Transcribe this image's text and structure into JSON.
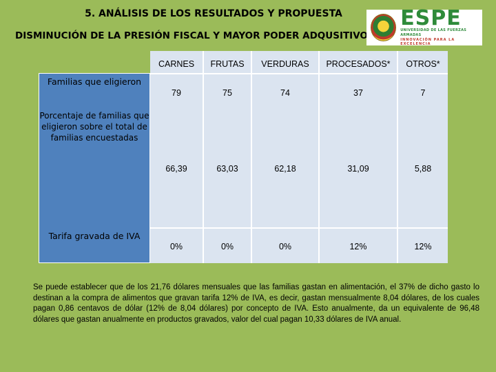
{
  "title": "5. ANÁLISIS DE LOS RESULTADOS Y PROPUESTA",
  "subtitle": "DISMINUCIÓN DE LA PRESIÓN FISCAL Y MAYOR PODER ADQUSITIVO",
  "logo": {
    "word": "ESPE",
    "line1": "UNIVERSIDAD DE LAS FUERZAS ARMADAS",
    "line2": "INNOVACIÓN PARA LA EXCELENCIA"
  },
  "table": {
    "columns": [
      "CARNES",
      "FRUTAS",
      "VERDURAS",
      "PROCESADOS*",
      "OTROS*"
    ],
    "row_headers": [
      "Familias que eligieron",
      "Porcentaje de familias que eligieron sobre el total de familias encuestadas",
      "Tarifa gravada de IVA"
    ],
    "rows": [
      [
        "79",
        "75",
        "74",
        "37",
        "7"
      ],
      [
        "66,39",
        "63,03",
        "62,18",
        "31,09",
        "5,88"
      ],
      [
        "0%",
        "0%",
        "0%",
        "12%",
        "12%"
      ]
    ]
  },
  "note": "Se puede establecer que de los 21,76 dólares mensuales que las familias gastan en alimentación, el 37% de dicho gasto lo destinan a la compra de alimentos que gravan tarifa 12% de IVA, es decir, gastan mensualmente 8,04 dólares, de los cuales pagan 0,86 centavos de dólar (12% de 8,04 dólares) por concepto de IVA. Esto anualmente, da un equivalente de 96,48 dólares que gastan anualmente en productos gravados, valor del cual pagan 10,33 dólares de IVA anual.",
  "colors": {
    "background": "#9bbb59",
    "header_blue": "#4f81bd",
    "cell_fill": "#dbe4f0",
    "logo_green": "#2e8b3a",
    "logo_red": "#c0392b"
  }
}
